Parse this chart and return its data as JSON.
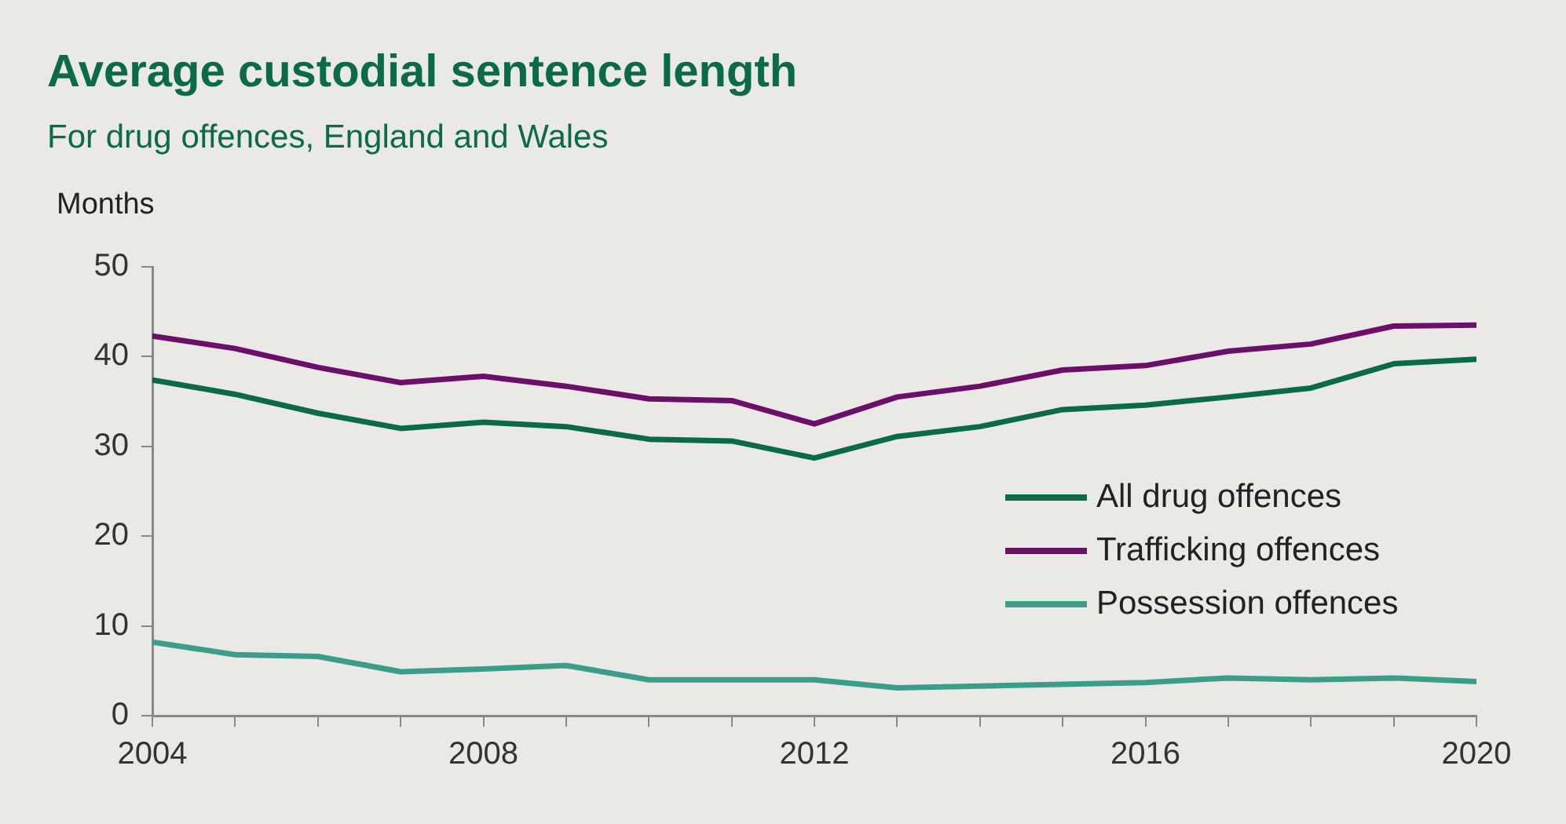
{
  "chart_data": {
    "type": "line",
    "title": "Average custodial sentence length",
    "subtitle": "For drug offences, England and Wales",
    "ylabel": "Months",
    "x": [
      2004,
      2005,
      2006,
      2007,
      2008,
      2009,
      2010,
      2011,
      2012,
      2013,
      2014,
      2015,
      2016,
      2017,
      2018,
      2019,
      2020
    ],
    "series": [
      {
        "name": "All drug offences",
        "color": "#0a6b47",
        "values": [
          37.4,
          35.8,
          33.7,
          32.0,
          32.7,
          32.2,
          30.8,
          30.6,
          28.7,
          31.1,
          32.2,
          34.1,
          34.6,
          35.5,
          36.5,
          39.2,
          39.7
        ]
      },
      {
        "name": "Trafficking offences",
        "color": "#6b0f6b",
        "values": [
          42.3,
          40.9,
          38.8,
          37.1,
          37.8,
          36.7,
          35.3,
          35.1,
          32.5,
          35.5,
          36.7,
          38.5,
          39.0,
          40.6,
          41.4,
          43.4,
          43.5
        ]
      },
      {
        "name": "Possession offences",
        "color": "#3b9e8a",
        "values": [
          8.2,
          6.8,
          6.6,
          4.9,
          5.2,
          5.6,
          4.0,
          4.0,
          4.0,
          3.1,
          3.3,
          3.5,
          3.7,
          4.2,
          4.0,
          4.2,
          3.8
        ]
      }
    ],
    "xlim": [
      2004,
      2020
    ],
    "xticks": [
      2004,
      {
        "value": 2005,
        "label": null
      },
      {
        "value": 2006,
        "label": null
      },
      {
        "value": 2007,
        "label": null
      },
      2008,
      {
        "value": 2009,
        "label": null
      },
      {
        "value": 2010,
        "label": null
      },
      {
        "value": 2011,
        "label": null
      },
      2012,
      {
        "value": 2013,
        "label": null
      },
      {
        "value": 2014,
        "label": null
      },
      {
        "value": 2015,
        "label": null
      },
      2016,
      {
        "value": 2017,
        "label": null
      },
      {
        "value": 2018,
        "label": null
      },
      {
        "value": 2019,
        "label": null
      },
      2020
    ],
    "ylim": [
      0,
      50
    ],
    "yticks": [
      0,
      10,
      20,
      30,
      40,
      50
    ],
    "grid": false,
    "legend": "right",
    "marker": "none",
    "line_style": "solid"
  }
}
